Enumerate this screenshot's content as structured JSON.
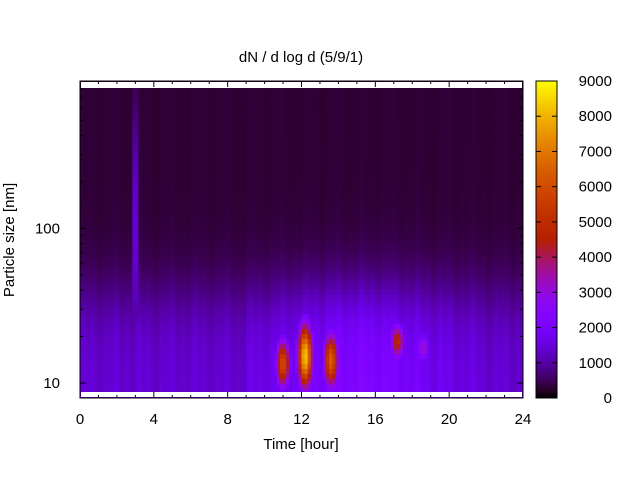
{
  "chart_data": {
    "type": "heatmap",
    "title": "dN / d log d (5/9/1)",
    "xlabel": "Time [hour]",
    "ylabel": "Particle size [nm]",
    "xlim": [
      0,
      24
    ],
    "x_ticks": [
      0,
      4,
      8,
      12,
      16,
      20,
      24
    ],
    "y_scale": "log",
    "ylim": [
      8,
      900
    ],
    "y_tick_labels": [
      {
        "value": 10,
        "label": "10"
      },
      {
        "value": 100,
        "label": "100"
      }
    ],
    "colorbar": {
      "min": 0,
      "max": 9000,
      "ticks": [
        0,
        1000,
        2000,
        3000,
        4000,
        5000,
        6000,
        7000,
        8000,
        9000
      ],
      "colormap": "gnuplot (black-purple-red-orange-yellow)"
    },
    "features": [
      {
        "description": "faint vertical streak",
        "time_hour": 3.0,
        "size_range_nm": [
          10,
          800
        ],
        "value": 2200
      },
      {
        "description": "new particle formation burst",
        "time_hour": 11.0,
        "size_range_nm": [
          9,
          20
        ],
        "value": 6000
      },
      {
        "description": "new particle formation burst",
        "time_hour": 12.2,
        "size_range_nm": [
          9,
          25
        ],
        "value": 8300
      },
      {
        "description": "new particle formation burst",
        "time_hour": 13.6,
        "size_range_nm": [
          9,
          22
        ],
        "value": 6500
      },
      {
        "description": "secondary burst",
        "time_hour": 17.2,
        "size_range_nm": [
          14,
          25
        ],
        "value": 4800
      },
      {
        "description": "secondary burst",
        "time_hour": 18.6,
        "size_range_nm": [
          13,
          22
        ],
        "value": 3200
      }
    ],
    "background_levels": {
      "small_particles_nm_below_30": 1400,
      "large_particles_nm_above_200": 300
    }
  }
}
